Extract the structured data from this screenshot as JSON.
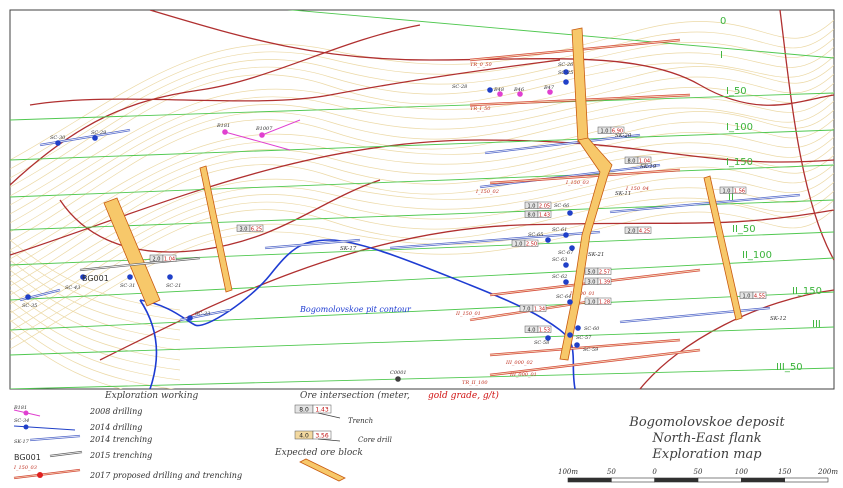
{
  "title_block": {
    "line1": "Bogomolovskoe deposit",
    "line2": "North-East flank",
    "line3": "Exploration map"
  },
  "pit_label": "Bogomolovskoe pit contour",
  "section_lines": [
    {
      "name": "0"
    },
    {
      "name": "I"
    },
    {
      "name": "I_50"
    },
    {
      "name": "I_100"
    },
    {
      "name": "I_150"
    },
    {
      "name": "II"
    },
    {
      "name": "II_50"
    },
    {
      "name": "II_100"
    },
    {
      "name": "II_150"
    },
    {
      "name": "III"
    },
    {
      "name": "III_50"
    }
  ],
  "trenches": [
    {
      "label": "SK-20"
    },
    {
      "label": "SK-19"
    },
    {
      "label": "SK-17"
    },
    {
      "label": "SK-21"
    },
    {
      "label": "SK-12"
    },
    {
      "label": "SK-11"
    }
  ],
  "drill_labels": [
    {
      "label": "SC-30"
    },
    {
      "label": "SC-29"
    },
    {
      "label": "SC-43"
    },
    {
      "label": "SC-21"
    },
    {
      "label": "SC-31"
    },
    {
      "label": "SC-35"
    },
    {
      "label": "SC-33"
    },
    {
      "label": "SC-28"
    },
    {
      "label": "SC-26"
    },
    {
      "label": "SC-25"
    },
    {
      "label": "SC-57"
    },
    {
      "label": "SC-58"
    },
    {
      "label": "SC-59"
    },
    {
      "label": "SC-60"
    },
    {
      "label": "SC-61"
    },
    {
      "label": "SC-62"
    },
    {
      "label": "SC-63"
    },
    {
      "label": "SC-64"
    },
    {
      "label": "SC-65"
    },
    {
      "label": "SC-66"
    },
    {
      "label": "SC-67"
    },
    {
      "label": "B181"
    },
    {
      "label": "B1007"
    },
    {
      "label": "B48"
    },
    {
      "label": "B46"
    },
    {
      "label": "B47"
    },
    {
      "label": "C0001"
    }
  ],
  "ore_tags": [
    {
      "m": "1.0",
      "g": "6.90"
    },
    {
      "m": "8.0",
      "g": "1.04"
    },
    {
      "m": "1.0",
      "g": "1.56"
    },
    {
      "m": "8.0",
      "g": "1.43"
    },
    {
      "m": "1.0",
      "g": "2.05"
    },
    {
      "m": "3.0",
      "g": "6.25"
    },
    {
      "m": "2.0",
      "g": "1.04"
    },
    {
      "m": "1.0",
      "g": "4.55"
    },
    {
      "m": "7.0",
      "g": "1.34"
    },
    {
      "m": "5.0",
      "g": "2.57"
    },
    {
      "m": "3.0",
      "g": "1.39"
    },
    {
      "m": "1.0",
      "g": "1.28"
    },
    {
      "m": "4.0",
      "g": "1.53"
    },
    {
      "m": "1.0",
      "g": "2.50"
    },
    {
      "m": "2.0",
      "g": "4.25"
    }
  ],
  "proposed_labels": [
    {
      "label": "TR_0_50"
    },
    {
      "label": "TR_I_50"
    },
    {
      "label": "I_150_02"
    },
    {
      "label": "I_150_03"
    },
    {
      "label": "I_150_04"
    },
    {
      "label": "II_100_01"
    },
    {
      "label": "II_150_01"
    },
    {
      "label": "III_000_02"
    },
    {
      "label": "III_000_01"
    },
    {
      "label": "TR_II_100"
    }
  ],
  "bg_label": "BG001",
  "legend": {
    "exploration_header": "Exploration working",
    "ore_header": "Ore intersection (meter,",
    "ore_header_red": "gold grade, g/t)",
    "items": [
      {
        "sample": "B181",
        "text": "2008 drilling"
      },
      {
        "sample": "SC-34",
        "text": "2014 drilling"
      },
      {
        "sample": "SK-17",
        "text": "2014 trenching"
      },
      {
        "sample": "BG001",
        "text": "2015 trenching"
      },
      {
        "sample": "I_150_03",
        "text": "2017 proposed drilling and trenching"
      }
    ],
    "trench_sample": {
      "m": "8.0",
      "g": "1.43",
      "text": "Trench"
    },
    "core_sample": {
      "m": "4.0",
      "g": "3.56",
      "text": "Core drill"
    },
    "ore_block": "Expected ore block"
  },
  "scale": {
    "ticks": [
      "100m",
      "50",
      "0",
      "50",
      "100",
      "150",
      "200m"
    ]
  },
  "colors": {
    "contour": "#ecd9a6",
    "fault": "#b03030",
    "section": "#50c850",
    "pit": "#1e3cd2",
    "trench": "#5066c8",
    "ore": "#f7c86a",
    "proposed": "#d44a3a",
    "drill": "#2040c8",
    "drill2008": "#e040d0"
  }
}
